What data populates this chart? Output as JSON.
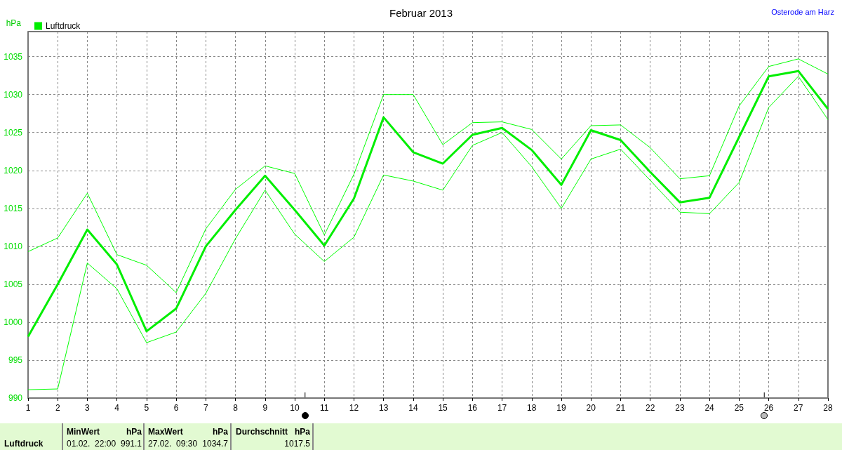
{
  "chart_data": {
    "type": "line",
    "title": "Februar 2013",
    "subtitle": "Osterode am Harz",
    "ylabel": "hPa",
    "x": [
      1,
      2,
      3,
      4,
      5,
      6,
      7,
      8,
      9,
      10,
      11,
      12,
      13,
      14,
      15,
      16,
      17,
      18,
      19,
      20,
      21,
      22,
      23,
      24,
      25,
      26,
      27,
      28
    ],
    "xlim": [
      1,
      28
    ],
    "xticks": [
      1,
      2,
      3,
      4,
      5,
      6,
      7,
      8,
      9,
      10,
      11,
      12,
      13,
      14,
      15,
      16,
      17,
      18,
      19,
      20,
      21,
      22,
      23,
      24,
      25,
      26,
      27,
      28
    ],
    "ylim": [
      990,
      1038.3
    ],
    "yticks": [
      990,
      995,
      1000,
      1005,
      1010,
      1015,
      1020,
      1025,
      1030,
      1035
    ],
    "series": [
      {
        "name": "Luftdruck",
        "color": "#00ee00",
        "values": [
          998.1,
          1005,
          1012.2,
          1007.6,
          998.8,
          1001.8,
          1010,
          1014.8,
          1019.3,
          1014.8,
          1010.1,
          1016.3,
          1027,
          1022.4,
          1020.9,
          1024.7,
          1025.6,
          1022.7,
          1018.1,
          1025.3,
          1024,
          1019.8,
          1015.8,
          1016.4,
          1024.4,
          1032.4,
          1033.1,
          1028.1
        ]
      },
      {
        "color": "#00ff00",
        "values": [
          1009.3,
          1011.1,
          1017,
          1008.9,
          1007.5,
          1003.9,
          1012.3,
          1017.5,
          1020.6,
          1019.6,
          1011.5,
          1019.5,
          1030,
          1030,
          1023.4,
          1026.3,
          1026.4,
          1025.4,
          1021.5,
          1025.9,
          1026,
          1023,
          1018.9,
          1019.3,
          1028.5,
          1033.7,
          1034.7,
          1032.7
        ]
      },
      {
        "color": "#00ff00",
        "values": [
          991.1,
          991.2,
          1007.8,
          1004.4,
          997.3,
          998.7,
          1003.8,
          1011,
          1017.4,
          1011.6,
          1008,
          1011.2,
          1019.4,
          1018.6,
          1017.4,
          1023.3,
          1025,
          1020.5,
          1015,
          1021.5,
          1022.8,
          1018.7,
          1014.5,
          1014.3,
          1018.4,
          1028.3,
          1032.4,
          1026.7
        ]
      }
    ],
    "annotations": [
      "Luftdruck",
      "MinWert",
      "hPa",
      "01.02.  22:00",
      "991.1",
      "MaxWert",
      "hPa",
      "27.02.  09:30",
      "1034.7",
      "Durchschnitt",
      "hPa",
      "1017.5"
    ],
    "grid": true,
    "legend": "top left",
    "marker": "none",
    "line_style": "solid"
  }
}
